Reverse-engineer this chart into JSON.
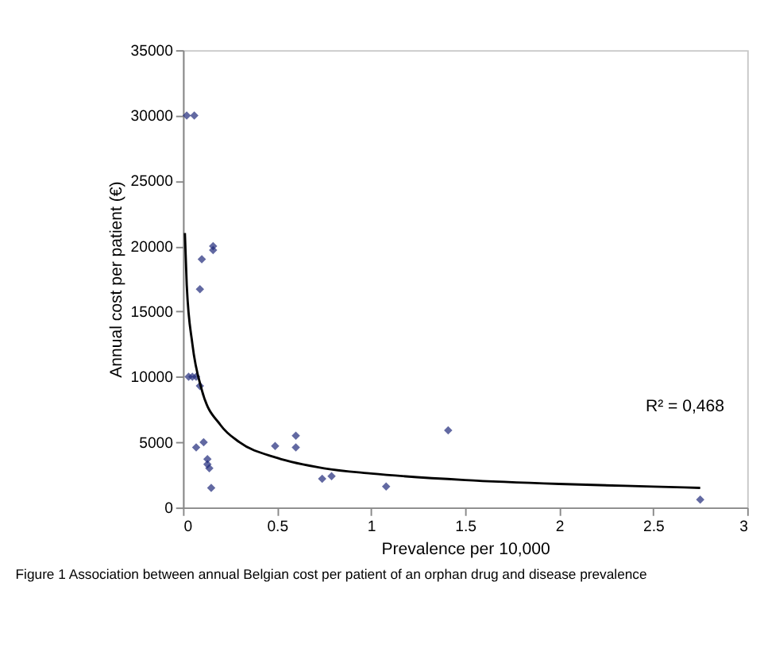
{
  "chart_data": {
    "type": "scatter",
    "xlabel": "Prevalence per 10,000",
    "ylabel": "Annual cost per patient (€)",
    "xlim": [
      0,
      3
    ],
    "xticks": [
      0,
      0.5,
      1,
      1.5,
      2,
      2.5,
      3
    ],
    "ylim": [
      0,
      35000
    ],
    "yticks": [
      0,
      5000,
      10000,
      15000,
      20000,
      25000,
      30000,
      35000
    ],
    "grid": false,
    "marker": "diamond",
    "annotations": [
      "R² = 0,468",
      "Figure 1 Association between annual Belgian cost per patient of an orphan drug and disease prevalence"
    ],
    "series": [
      {
        "color": "#1f2a7a",
        "x": [
          0.02,
          0.06,
          0.1,
          0.16,
          0.16,
          0.09,
          0.03,
          0.05,
          0.07,
          0.09,
          0.07,
          0.11,
          0.13,
          0.13,
          0.14,
          0.15,
          0.49,
          0.6,
          0.6,
          0.74,
          0.79,
          1.08,
          1.41,
          2.75
        ],
        "values": [
          30000,
          30000,
          19000,
          20000,
          19700,
          16700,
          10000,
          10000,
          10000,
          9300,
          4600,
          5000,
          3700,
          3300,
          3000,
          1500,
          4700,
          5500,
          4600,
          2200,
          2400,
          1600,
          5900,
          600
        ]
      },
      {
        "type": "line",
        "marker": "none",
        "color": "#000000",
        "line_style": "solid",
        "x": [
          0.01,
          0.02,
          0.05,
          0.1,
          0.2,
          0.3,
          0.5,
          0.75,
          1,
          1.5,
          2,
          2.5,
          2.75
        ],
        "values": [
          21000,
          17000,
          12500,
          9000,
          6300,
          5000,
          3800,
          3000,
          2600,
          2100,
          1800,
          1600,
          1500
        ]
      }
    ]
  }
}
